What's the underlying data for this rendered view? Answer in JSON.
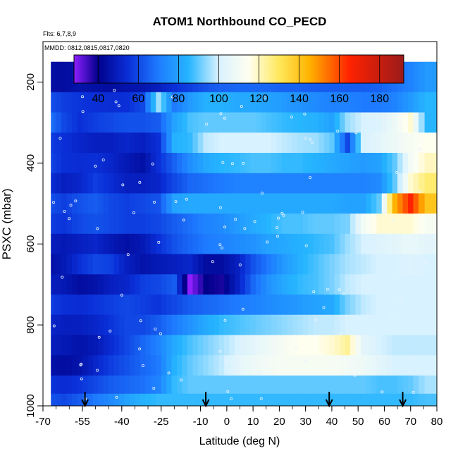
{
  "chart_data": {
    "type": "heatmap",
    "title": "ATOM1 Northbound CO_PECD",
    "subtitle_flights": "Flts: 6,7,8,9",
    "subtitle_dates": "MMDD: 0812,0815,0817,0820",
    "xlabel": "Latitude (deg N)",
    "ylabel": "PSXC (mbar)",
    "xlim": [
      -70,
      80
    ],
    "ylim": [
      1000,
      100
    ],
    "x_ticks": [
      -70,
      -55,
      -40,
      -25,
      -10,
      0,
      10,
      20,
      30,
      40,
      50,
      60,
      70,
      80
    ],
    "y_ticks": [
      200,
      400,
      600,
      800,
      1000
    ],
    "colorbar": {
      "ticks": [
        40,
        60,
        80,
        100,
        120,
        140,
        160,
        180
      ],
      "range": [
        28,
        192
      ],
      "stops": [
        {
          "v": 28,
          "c": "#8f1eff"
        },
        {
          "v": 40,
          "c": "#00008b"
        },
        {
          "v": 55,
          "c": "#0a2fd8"
        },
        {
          "v": 70,
          "c": "#1e7bff"
        },
        {
          "v": 85,
          "c": "#26b5ff"
        },
        {
          "v": 100,
          "c": "#d9f2ff"
        },
        {
          "v": 115,
          "c": "#fffff0"
        },
        {
          "v": 130,
          "c": "#ffe85c"
        },
        {
          "v": 145,
          "c": "#ffb300"
        },
        {
          "v": 165,
          "c": "#ff2200"
        },
        {
          "v": 192,
          "c": "#9a1a1a"
        }
      ]
    },
    "lat_samples": [
      -68,
      -62,
      -56,
      -50,
      -44,
      -38,
      -32,
      -26,
      -20,
      -14,
      -8,
      -2,
      4,
      10,
      16,
      22,
      28,
      34,
      40,
      46,
      52,
      58,
      64,
      70,
      76
    ],
    "levels": [
      {
        "p": 200,
        "values": [
          45,
          44,
          46,
          45,
          44,
          46,
          47,
          50,
          55,
          58,
          62,
          65,
          66,
          66,
          66,
          65,
          65,
          64,
          64,
          64,
          64,
          65,
          68,
          72,
          78
        ]
      },
      {
        "p": 250,
        "values": [
          62,
          58,
          56,
          55,
          54,
          55,
          60,
          95,
          70,
          78,
          84,
          84,
          82,
          82,
          80,
          78,
          76,
          74,
          72,
          72,
          70,
          70,
          72,
          78,
          85
        ]
      },
      {
        "p": 300,
        "values": [
          70,
          60,
          55,
          58,
          60,
          62,
          62,
          64,
          80,
          88,
          90,
          90,
          90,
          90,
          88,
          86,
          85,
          84,
          80,
          95,
          100,
          102,
          108,
          118,
          85
        ]
      },
      {
        "p": 350,
        "values": [
          58,
          55,
          52,
          50,
          50,
          52,
          50,
          55,
          84,
          86,
          98,
          100,
          100,
          100,
          100,
          98,
          96,
          95,
          90,
          60,
          100,
          104,
          108,
          112,
          115
        ]
      },
      {
        "p": 400,
        "values": [
          60,
          55,
          54,
          55,
          52,
          48,
          45,
          55,
          65,
          75,
          82,
          85,
          86,
          88,
          88,
          86,
          86,
          84,
          82,
          80,
          78,
          80,
          90,
          110,
          120
        ]
      },
      {
        "p": 450,
        "values": [
          55,
          50,
          52,
          58,
          54,
          50,
          50,
          52,
          60,
          66,
          68,
          70,
          72,
          72,
          72,
          72,
          72,
          72,
          72,
          72,
          72,
          74,
          90,
          118,
          128
        ]
      },
      {
        "p": 500,
        "values": [
          62,
          58,
          62,
          64,
          60,
          58,
          60,
          62,
          80,
          82,
          82,
          82,
          82,
          82,
          82,
          82,
          82,
          82,
          82,
          80,
          80,
          90,
          145,
          165,
          140
        ]
      },
      {
        "p": 550,
        "values": [
          58,
          56,
          60,
          62,
          60,
          58,
          58,
          60,
          64,
          68,
          72,
          74,
          78,
          82,
          85,
          88,
          88,
          90,
          90,
          92,
          110,
          118,
          118,
          118,
          112
        ]
      },
      {
        "p": 600,
        "values": [
          50,
          48,
          50,
          52,
          48,
          45,
          48,
          55,
          62,
          66,
          70,
          72,
          74,
          76,
          80,
          82,
          84,
          86,
          88,
          95,
          100,
          102,
          104,
          106,
          104
        ]
      },
      {
        "p": 650,
        "values": [
          45,
          48,
          55,
          60,
          58,
          50,
          46,
          48,
          50,
          52,
          44,
          44,
          50,
          62,
          70,
          78,
          84,
          88,
          92,
          96,
          98,
          100,
          100,
          102,
          100
        ]
      },
      {
        "p": 700,
        "values": [
          50,
          48,
          44,
          46,
          50,
          52,
          58,
          60,
          64,
          28,
          40,
          38,
          50,
          66,
          76,
          82,
          86,
          88,
          92,
          98,
          100,
          100,
          100,
          100,
          100
        ]
      },
      {
        "p": 750,
        "values": [
          58,
          55,
          54,
          56,
          58,
          60,
          58,
          56,
          60,
          64,
          66,
          68,
          70,
          72,
          74,
          76,
          78,
          80,
          82,
          92,
          98,
          100,
          100,
          100,
          100
        ]
      },
      {
        "p": 800,
        "values": [
          52,
          50,
          50,
          52,
          56,
          60,
          60,
          64,
          70,
          76,
          82,
          86,
          88,
          90,
          92,
          94,
          96,
          98,
          98,
          100,
          100,
          100,
          100,
          100,
          100
        ]
      },
      {
        "p": 850,
        "values": [
          50,
          48,
          46,
          48,
          54,
          60,
          66,
          72,
          82,
          88,
          92,
          96,
          100,
          104,
          108,
          112,
          115,
          115,
          118,
          124,
          104,
          100,
          98,
          98,
          98
        ]
      },
      {
        "p": 900,
        "values": [
          46,
          44,
          46,
          52,
          58,
          62,
          66,
          70,
          84,
          90,
          94,
          98,
          104,
          108,
          110,
          112,
          112,
          112,
          112,
          110,
          108,
          104,
          100,
          100,
          100
        ]
      },
      {
        "p": 950,
        "values": [
          56,
          54,
          56,
          60,
          64,
          66,
          68,
          72,
          86,
          90,
          90,
          90,
          90,
          90,
          90,
          90,
          90,
          90,
          90,
          90,
          90,
          88,
          88,
          90,
          96
        ]
      },
      {
        "p": 990,
        "values": [
          62,
          60,
          64,
          70,
          74,
          80,
          84,
          86,
          86,
          86,
          86,
          86,
          86,
          86,
          86,
          86,
          86,
          86,
          86,
          86,
          86,
          86,
          86,
          86,
          88
        ]
      }
    ],
    "arrows_lat": [
      -54,
      -8,
      39,
      67
    ]
  }
}
